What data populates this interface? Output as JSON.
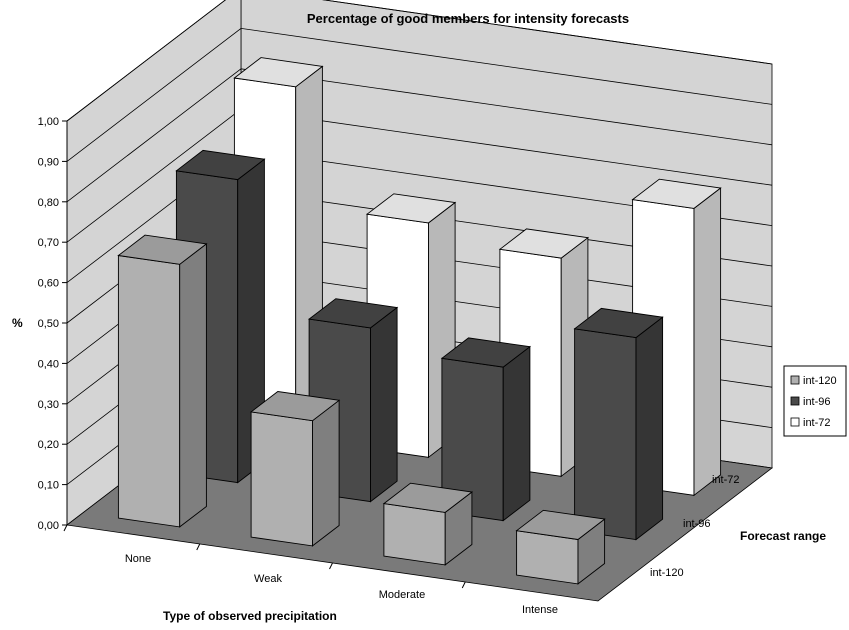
{
  "chart_data": {
    "type": "bar",
    "title": "Percentage of good members for intensity forecasts",
    "xlabel": "Type of observed precipitation",
    "ylabel": "%",
    "zlabel": "Forecast range",
    "categories": [
      "None",
      "Weak",
      "Moderate",
      "Intense"
    ],
    "series": [
      {
        "name": "int-120",
        "values": [
          0.65,
          0.31,
          0.13,
          0.11
        ],
        "color": "#b0b0b0"
      },
      {
        "name": "int-96",
        "values": [
          0.75,
          0.43,
          0.38,
          0.5
        ],
        "color": "#4a4a4a"
      },
      {
        "name": "int-72",
        "values": [
          0.87,
          0.58,
          0.54,
          0.71
        ],
        "color": "#ffffff"
      }
    ],
    "yticks": [
      "0,00",
      "0,10",
      "0,20",
      "0,30",
      "0,40",
      "0,50",
      "0,60",
      "0,70",
      "0,80",
      "0,90",
      "1,00"
    ],
    "ylim": [
      0,
      1
    ],
    "grid": true,
    "legend": "right",
    "colors": {
      "walls": "#d4d4d4",
      "floor": "#7a7a7a",
      "gridline": "#000000"
    }
  }
}
